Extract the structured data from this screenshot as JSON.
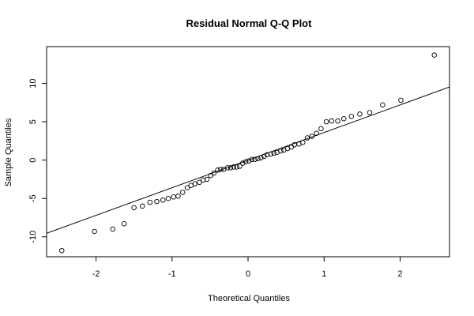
{
  "chart_data": {
    "type": "scatter",
    "title": "Residual Normal Q-Q Plot",
    "xlabel": "Theoretical Quantiles",
    "ylabel": "Sample Quantiles",
    "xlim": [
      -2.65,
      2.65
    ],
    "ylim": [
      -12.6,
      14.8
    ],
    "xticks": [
      -2,
      -1,
      0,
      1,
      2
    ],
    "yticks": [
      -10,
      -5,
      0,
      5,
      10
    ],
    "grid": false,
    "legend": "none",
    "reference_line": {
      "intercept": 0.0,
      "slope": 3.6
    },
    "points": [
      {
        "x": -2.45,
        "y": -11.8
      },
      {
        "x": -2.02,
        "y": -9.3
      },
      {
        "x": -1.78,
        "y": -9.0
      },
      {
        "x": -1.63,
        "y": -8.3
      },
      {
        "x": -1.5,
        "y": -6.2
      },
      {
        "x": -1.39,
        "y": -6.0
      },
      {
        "x": -1.29,
        "y": -5.5
      },
      {
        "x": -1.2,
        "y": -5.4
      },
      {
        "x": -1.12,
        "y": -5.2
      },
      {
        "x": -1.05,
        "y": -5.0
      },
      {
        "x": -0.98,
        "y": -4.8
      },
      {
        "x": -0.92,
        "y": -4.7
      },
      {
        "x": -0.86,
        "y": -4.2
      },
      {
        "x": -0.8,
        "y": -3.6
      },
      {
        "x": -0.75,
        "y": -3.3
      },
      {
        "x": -0.7,
        "y": -3.1
      },
      {
        "x": -0.64,
        "y": -2.9
      },
      {
        "x": -0.59,
        "y": -2.6
      },
      {
        "x": -0.54,
        "y": -2.5
      },
      {
        "x": -0.49,
        "y": -2.0
      },
      {
        "x": -0.45,
        "y": -1.7
      },
      {
        "x": -0.4,
        "y": -1.3
      },
      {
        "x": -0.36,
        "y": -1.2
      },
      {
        "x": -0.32,
        "y": -1.2
      },
      {
        "x": -0.27,
        "y": -1.0
      },
      {
        "x": -0.23,
        "y": -1.0
      },
      {
        "x": -0.19,
        "y": -0.9
      },
      {
        "x": -0.15,
        "y": -0.9
      },
      {
        "x": -0.11,
        "y": -0.8
      },
      {
        "x": -0.07,
        "y": -0.4
      },
      {
        "x": -0.03,
        "y": -0.2
      },
      {
        "x": 0.01,
        "y": -0.1
      },
      {
        "x": 0.05,
        "y": 0.1
      },
      {
        "x": 0.09,
        "y": 0.1
      },
      {
        "x": 0.13,
        "y": 0.2
      },
      {
        "x": 0.17,
        "y": 0.3
      },
      {
        "x": 0.21,
        "y": 0.5
      },
      {
        "x": 0.25,
        "y": 0.7
      },
      {
        "x": 0.3,
        "y": 0.8
      },
      {
        "x": 0.34,
        "y": 0.9
      },
      {
        "x": 0.38,
        "y": 1.0
      },
      {
        "x": 0.43,
        "y": 1.2
      },
      {
        "x": 0.47,
        "y": 1.3
      },
      {
        "x": 0.52,
        "y": 1.5
      },
      {
        "x": 0.57,
        "y": 1.7
      },
      {
        "x": 0.61,
        "y": 2.0
      },
      {
        "x": 0.67,
        "y": 2.1
      },
      {
        "x": 0.72,
        "y": 2.3
      },
      {
        "x": 0.78,
        "y": 2.9
      },
      {
        "x": 0.84,
        "y": 3.1
      },
      {
        "x": 0.9,
        "y": 3.5
      },
      {
        "x": 0.96,
        "y": 4.1
      },
      {
        "x": 1.03,
        "y": 5.0
      },
      {
        "x": 1.1,
        "y": 5.1
      },
      {
        "x": 1.18,
        "y": 5.1
      },
      {
        "x": 1.26,
        "y": 5.4
      },
      {
        "x": 1.36,
        "y": 5.7
      },
      {
        "x": 1.47,
        "y": 6.0
      },
      {
        "x": 1.6,
        "y": 6.2
      },
      {
        "x": 1.77,
        "y": 7.2
      },
      {
        "x": 2.01,
        "y": 7.8
      },
      {
        "x": 2.45,
        "y": 13.7
      }
    ]
  }
}
